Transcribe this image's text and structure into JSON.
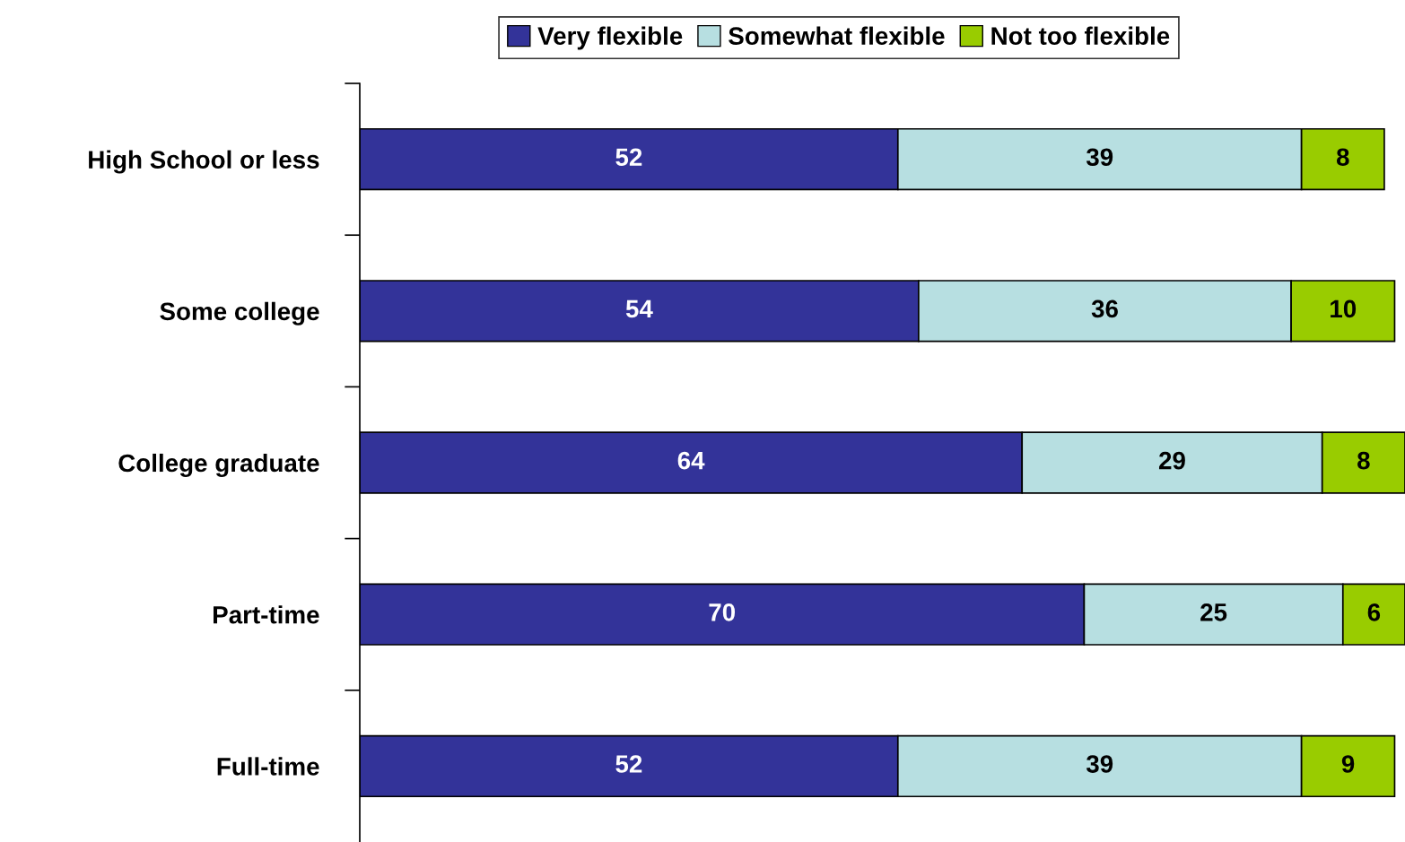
{
  "chart_data": {
    "type": "bar",
    "orientation": "horizontal",
    "stacked": true,
    "data_labels": true,
    "legend": "top",
    "grid": false,
    "categories": [
      "High School or less",
      "Some college",
      "College graduate",
      "Part-time",
      "Full-time"
    ],
    "series": [
      {
        "name": "Very flexible",
        "color": "#333399",
        "values": [
          52,
          54,
          64,
          70,
          52
        ]
      },
      {
        "name": "Somewhat flexible",
        "color": "#b7dfe1",
        "values": [
          39,
          36,
          29,
          25,
          39
        ]
      },
      {
        "name": "Not too flexible",
        "color": "#99cc00",
        "values": [
          8,
          10,
          8,
          6,
          9
        ]
      }
    ]
  }
}
